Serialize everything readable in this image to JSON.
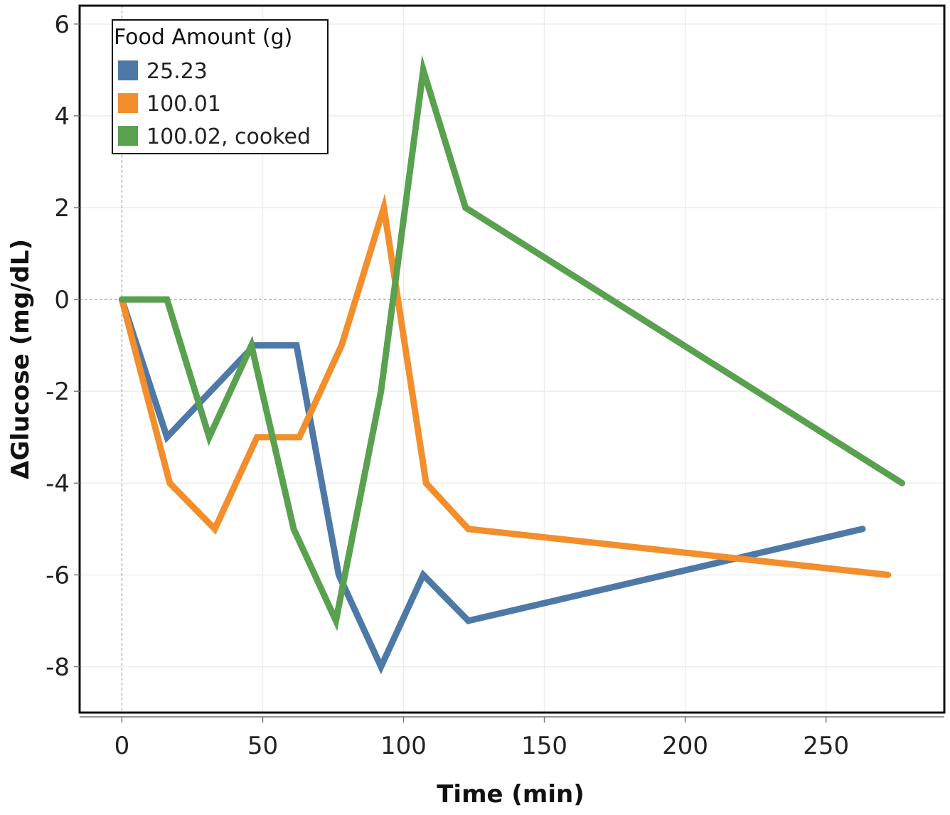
{
  "chart_data": {
    "type": "line",
    "title": "",
    "xlabel": "Time (min)",
    "ylabel": "ΔGlucose (mg/dL)",
    "xlim": [
      -15,
      292
    ],
    "ylim": [
      -9,
      6.4
    ],
    "xticks": [
      0,
      50,
      100,
      150,
      200,
      250
    ],
    "yticks": [
      6,
      4,
      2,
      0,
      -2,
      -4,
      -6,
      -8
    ],
    "grid": true,
    "legend": {
      "title": "Food Amount (g)",
      "position": "top-left"
    },
    "series": [
      {
        "name": "25.23",
        "color": "#4E79A7",
        "x": [
          0,
          16,
          47,
          62,
          77,
          92,
          107,
          123,
          263
        ],
        "y": [
          0,
          -3,
          -1,
          -1,
          -6,
          -8,
          -6,
          -7,
          -5
        ]
      },
      {
        "name": "100.01",
        "color": "#F28E2B",
        "x": [
          0,
          17,
          33,
          48,
          63,
          78,
          93,
          108,
          123,
          272
        ],
        "y": [
          0,
          -4,
          -5,
          -3,
          -3,
          -1,
          2,
          -4,
          -5,
          -6
        ]
      },
      {
        "name": "100.02, cooked",
        "color": "#59A14F",
        "x": [
          0,
          16,
          31,
          46,
          61,
          76,
          92,
          107,
          122,
          277
        ],
        "y": [
          0,
          0,
          -3,
          -1,
          -5,
          -7,
          -2,
          5,
          2,
          -4
        ]
      }
    ]
  }
}
